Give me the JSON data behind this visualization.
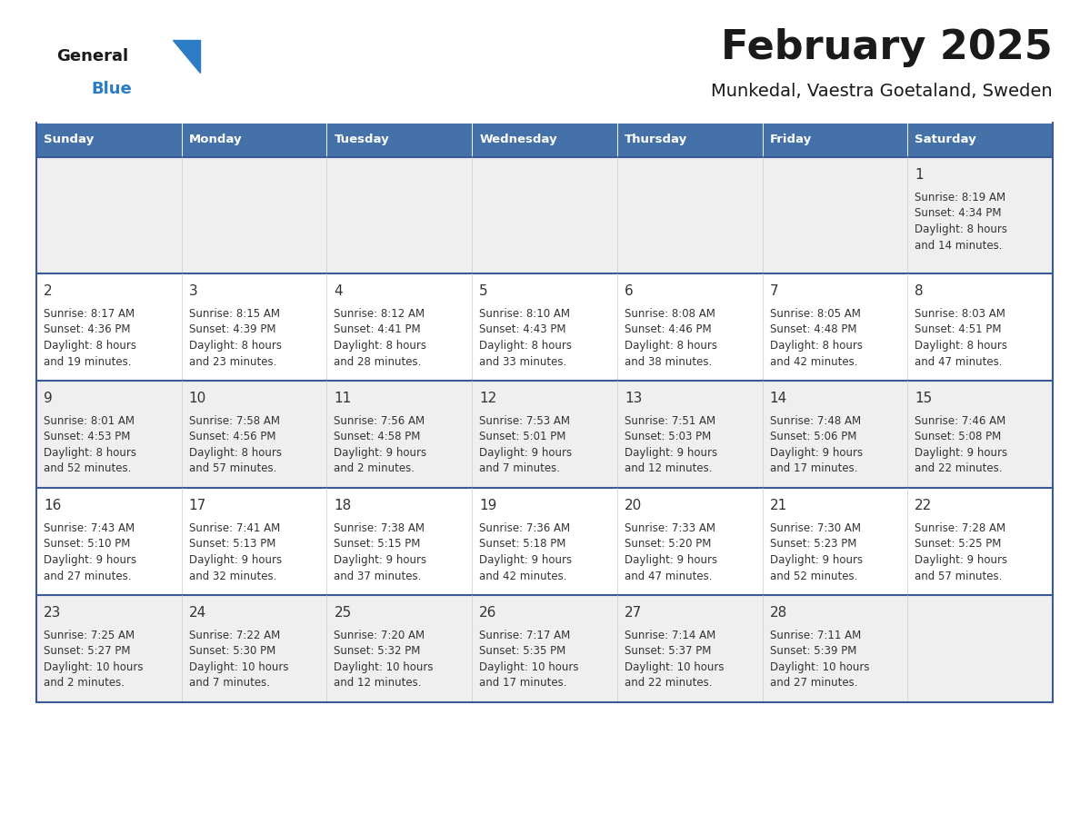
{
  "title": "February 2025",
  "subtitle": "Munkedal, Vaestra Goetaland, Sweden",
  "days_of_week": [
    "Sunday",
    "Monday",
    "Tuesday",
    "Wednesday",
    "Thursday",
    "Friday",
    "Saturday"
  ],
  "header_bg": "#4472A8",
  "header_fg": "#FFFFFF",
  "row_bg_odd": "#EFEFEF",
  "row_bg_even": "#FFFFFF",
  "cell_text_color": "#333333",
  "day_number_color": "#333333",
  "separator_color": "#3B5998",
  "calendar_data": [
    [
      null,
      null,
      null,
      null,
      null,
      null,
      {
        "day": 1,
        "sunrise": "8:19 AM",
        "sunset": "4:34 PM",
        "daylight": "8 hours",
        "daylight2": "and 14 minutes."
      }
    ],
    [
      {
        "day": 2,
        "sunrise": "8:17 AM",
        "sunset": "4:36 PM",
        "daylight": "8 hours",
        "daylight2": "and 19 minutes."
      },
      {
        "day": 3,
        "sunrise": "8:15 AM",
        "sunset": "4:39 PM",
        "daylight": "8 hours",
        "daylight2": "and 23 minutes."
      },
      {
        "day": 4,
        "sunrise": "8:12 AM",
        "sunset": "4:41 PM",
        "daylight": "8 hours",
        "daylight2": "and 28 minutes."
      },
      {
        "day": 5,
        "sunrise": "8:10 AM",
        "sunset": "4:43 PM",
        "daylight": "8 hours",
        "daylight2": "and 33 minutes."
      },
      {
        "day": 6,
        "sunrise": "8:08 AM",
        "sunset": "4:46 PM",
        "daylight": "8 hours",
        "daylight2": "and 38 minutes."
      },
      {
        "day": 7,
        "sunrise": "8:05 AM",
        "sunset": "4:48 PM",
        "daylight": "8 hours",
        "daylight2": "and 42 minutes."
      },
      {
        "day": 8,
        "sunrise": "8:03 AM",
        "sunset": "4:51 PM",
        "daylight": "8 hours",
        "daylight2": "and 47 minutes."
      }
    ],
    [
      {
        "day": 9,
        "sunrise": "8:01 AM",
        "sunset": "4:53 PM",
        "daylight": "8 hours",
        "daylight2": "and 52 minutes."
      },
      {
        "day": 10,
        "sunrise": "7:58 AM",
        "sunset": "4:56 PM",
        "daylight": "8 hours",
        "daylight2": "and 57 minutes."
      },
      {
        "day": 11,
        "sunrise": "7:56 AM",
        "sunset": "4:58 PM",
        "daylight": "9 hours",
        "daylight2": "and 2 minutes."
      },
      {
        "day": 12,
        "sunrise": "7:53 AM",
        "sunset": "5:01 PM",
        "daylight": "9 hours",
        "daylight2": "and 7 minutes."
      },
      {
        "day": 13,
        "sunrise": "7:51 AM",
        "sunset": "5:03 PM",
        "daylight": "9 hours",
        "daylight2": "and 12 minutes."
      },
      {
        "day": 14,
        "sunrise": "7:48 AM",
        "sunset": "5:06 PM",
        "daylight": "9 hours",
        "daylight2": "and 17 minutes."
      },
      {
        "day": 15,
        "sunrise": "7:46 AM",
        "sunset": "5:08 PM",
        "daylight": "9 hours",
        "daylight2": "and 22 minutes."
      }
    ],
    [
      {
        "day": 16,
        "sunrise": "7:43 AM",
        "sunset": "5:10 PM",
        "daylight": "9 hours",
        "daylight2": "and 27 minutes."
      },
      {
        "day": 17,
        "sunrise": "7:41 AM",
        "sunset": "5:13 PM",
        "daylight": "9 hours",
        "daylight2": "and 32 minutes."
      },
      {
        "day": 18,
        "sunrise": "7:38 AM",
        "sunset": "5:15 PM",
        "daylight": "9 hours",
        "daylight2": "and 37 minutes."
      },
      {
        "day": 19,
        "sunrise": "7:36 AM",
        "sunset": "5:18 PM",
        "daylight": "9 hours",
        "daylight2": "and 42 minutes."
      },
      {
        "day": 20,
        "sunrise": "7:33 AM",
        "sunset": "5:20 PM",
        "daylight": "9 hours",
        "daylight2": "and 47 minutes."
      },
      {
        "day": 21,
        "sunrise": "7:30 AM",
        "sunset": "5:23 PM",
        "daylight": "9 hours",
        "daylight2": "and 52 minutes."
      },
      {
        "day": 22,
        "sunrise": "7:28 AM",
        "sunset": "5:25 PM",
        "daylight": "9 hours",
        "daylight2": "and 57 minutes."
      }
    ],
    [
      {
        "day": 23,
        "sunrise": "7:25 AM",
        "sunset": "5:27 PM",
        "daylight": "10 hours",
        "daylight2": "and 2 minutes."
      },
      {
        "day": 24,
        "sunrise": "7:22 AM",
        "sunset": "5:30 PM",
        "daylight": "10 hours",
        "daylight2": "and 7 minutes."
      },
      {
        "day": 25,
        "sunrise": "7:20 AM",
        "sunset": "5:32 PM",
        "daylight": "10 hours",
        "daylight2": "and 12 minutes."
      },
      {
        "day": 26,
        "sunrise": "7:17 AM",
        "sunset": "5:35 PM",
        "daylight": "10 hours",
        "daylight2": "and 17 minutes."
      },
      {
        "day": 27,
        "sunrise": "7:14 AM",
        "sunset": "5:37 PM",
        "daylight": "10 hours",
        "daylight2": "and 22 minutes."
      },
      {
        "day": 28,
        "sunrise": "7:11 AM",
        "sunset": "5:39 PM",
        "daylight": "10 hours",
        "daylight2": "and 27 minutes."
      },
      null
    ]
  ],
  "logo_general_color": "#1a1a1a",
  "logo_blue_color": "#2B7CC4",
  "logo_triangle_color": "#2B7CC4",
  "fig_width": 11.88,
  "fig_height": 9.18,
  "dpi": 100
}
